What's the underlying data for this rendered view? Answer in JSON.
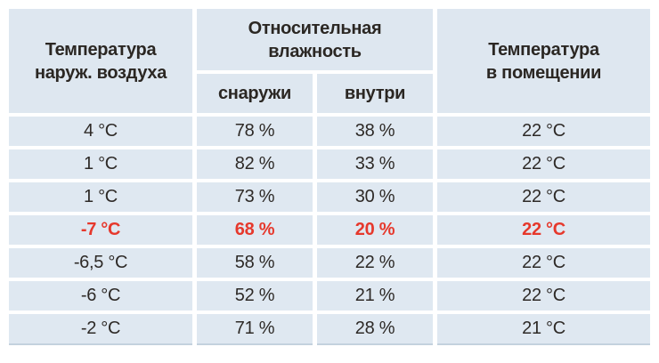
{
  "chart_data": {
    "type": "table",
    "title": "",
    "columns": {
      "outdoor_temp": "Температура\nнаруж. воздуха",
      "humidity_group": "Относительная\nвлажность",
      "humidity_outside": "снаружи",
      "humidity_inside": "внутри",
      "indoor_temp": "Температура\nв помещении"
    },
    "rows": [
      {
        "outdoor": "4 °C",
        "outside": "78 %",
        "inside": "38 %",
        "indoor": "22 °C"
      },
      {
        "outdoor": "1 °C",
        "outside": "82 %",
        "inside": "33 %",
        "indoor": "22 °C"
      },
      {
        "outdoor": "1 °C",
        "outside": "73 %",
        "inside": "30 %",
        "indoor": "22 °C"
      },
      {
        "outdoor": "-7 °C",
        "outside": "68 %",
        "inside": "20 %",
        "indoor": "22 °C"
      },
      {
        "outdoor": "-6,5 °C",
        "outside": "58 %",
        "inside": "22 %",
        "indoor": "22 °C"
      },
      {
        "outdoor": "-6 °C",
        "outside": "52 %",
        "inside": "21 %",
        "indoor": "22 °C"
      },
      {
        "outdoor": "-2 °C",
        "outside": "71 %",
        "inside": "28 %",
        "indoor": "21 °C"
      }
    ],
    "highlighted_row_index": 3,
    "colors": {
      "header_bg": "#dee7f0",
      "cell_bg": "#dfe8f1",
      "text": "#2e2a27",
      "highlight_text": "#e6382c",
      "bottom_edge": "#c3d1de",
      "gap": "#ffffff"
    },
    "layout": {
      "grid": "cells separated by white gaps",
      "legend": "none"
    }
  }
}
